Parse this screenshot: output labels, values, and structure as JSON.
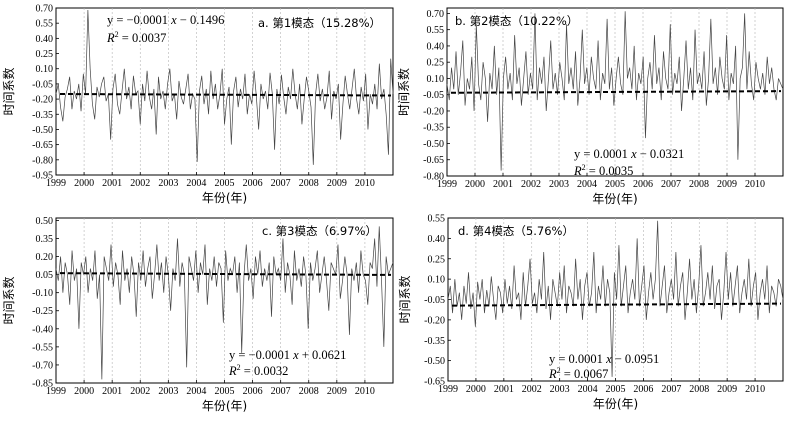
{
  "chart_data": [
    {
      "type": "line",
      "panel": "a",
      "annotation": "a. 第1模态（15.28%）",
      "xlabel": "年份(年)",
      "ylabel": "时间系数",
      "ylim": [
        -0.95,
        0.7
      ],
      "yticks": [
        "0.70",
        "0.55",
        "0.40",
        "0.25",
        "0.10",
        "-0.05",
        "-0.20",
        "-0.35",
        "-0.50",
        "-0.65",
        "-0.80",
        "-0.95"
      ],
      "xticks": [
        "1999",
        "2000",
        "2001",
        "2002",
        "2003",
        "2004",
        "2005",
        "2006",
        "2007",
        "2008",
        "2009",
        "2010"
      ],
      "xlim": [
        1999,
        2011
      ],
      "grid": "vertical dashed",
      "trend": {
        "slope": -0.0001,
        "intercept": -0.1496
      },
      "equation": {
        "prefix": "y = −0.0001 ",
        "var": "x",
        "suffix": " − 0.1496",
        "r2": " = 0.0037"
      },
      "series": [
        {
          "values": [
            -0.15,
            -0.05,
            -0.28,
            -0.42,
            -0.18,
            -0.1,
            0.02,
            -0.3,
            -0.12,
            -0.2,
            -0.05,
            -0.32,
            0.05,
            -0.15,
            0.68,
            0.1,
            -0.25,
            -0.4,
            -0.08,
            -0.18,
            -0.05,
            0.02,
            -0.22,
            -0.15,
            -0.6,
            -0.1,
            0.05,
            -0.25,
            -0.35,
            -0.12,
            0.1,
            -0.2,
            -0.08,
            -0.3,
            0.03,
            -0.15,
            -0.12,
            -0.45,
            -0.05,
            -0.22,
            0.08,
            -0.18,
            -0.3,
            -0.1,
            -0.55,
            0.02,
            -0.2,
            -0.12,
            -0.3,
            -0.05,
            0.1,
            -0.22,
            -0.15,
            -0.4,
            -0.02,
            -0.18,
            -0.25,
            -0.1,
            0.05,
            -0.3,
            -0.15,
            -0.2,
            -0.82,
            -0.12,
            0.03,
            -0.25,
            -0.1,
            -0.35,
            0.08,
            -0.2,
            -0.05,
            -0.3,
            -0.15,
            0.1,
            -0.45,
            -0.2,
            -0.08,
            -0.65,
            -0.12,
            0.02,
            -0.28,
            -0.1,
            -0.2,
            0.05,
            -0.35,
            -0.15,
            -0.25,
            0.08,
            -0.18,
            -0.5,
            -0.05,
            -0.2,
            -0.12,
            -0.3,
            0.06,
            -0.15,
            -0.7,
            -0.1,
            -0.25,
            0.04,
            -0.18,
            -0.35,
            -0.08,
            -0.2,
            0.1,
            -0.15,
            -0.3,
            -0.05,
            -0.45,
            -0.2,
            0.02,
            -0.12,
            -0.28,
            -0.85,
            -0.15,
            0.05,
            -0.22,
            -0.1,
            -0.3,
            -0.18,
            0.08,
            -0.4,
            -0.12,
            -0.2,
            -0.05,
            -0.6,
            -0.25,
            0.03,
            -0.15,
            -0.3,
            -0.1,
            0.1,
            -0.2,
            -0.35,
            -0.08,
            -0.22,
            0.05,
            -0.5,
            -0.15,
            -0.25,
            -0.05,
            -0.3,
            0.15,
            -0.2,
            -0.1,
            -0.35,
            -0.75,
            0.2,
            -0.15
          ]
        }
      ]
    },
    {
      "type": "line",
      "panel": "b",
      "annotation": "b. 第2模态（10.22%）",
      "xlabel": "年份(年)",
      "ylabel": "时间系数",
      "ylim": [
        -0.8,
        0.75
      ],
      "yticks": [
        "0.70",
        "0.55",
        "0.40",
        "0.25",
        "0.10",
        "-0.05",
        "-0.20",
        "-0.35",
        "-0.50",
        "-0.65",
        "-0.80"
      ],
      "xticks": [
        "1999",
        "2000",
        "2001",
        "2002",
        "2003",
        "2004",
        "2005",
        "2006",
        "2007",
        "2008",
        "2009",
        "2010"
      ],
      "xlim": [
        1999,
        2011
      ],
      "grid": "vertical dashed",
      "trend": {
        "slope": 0.0001,
        "intercept": -0.0321
      },
      "equation": {
        "prefix": "y = 0.0001 ",
        "var": "x",
        "suffix": " − 0.0321",
        "r2": " = 0.0035"
      },
      "series": [
        {
          "values": [
            0.05,
            -0.1,
            0.2,
            0.0,
            0.35,
            -0.05,
            0.15,
            0.45,
            -0.15,
            0.1,
            0.0,
            0.3,
            -0.2,
            0.6,
            0.05,
            -0.1,
            0.25,
            0.1,
            -0.3,
            0.15,
            0.0,
            0.4,
            -0.05,
            0.2,
            -0.75,
            0.1,
            0.3,
            0.0,
            0.15,
            -0.1,
            0.5,
            0.05,
            0.2,
            -0.15,
            0.1,
            0.35,
            -0.05,
            0.15,
            0.0,
            0.7,
            -0.1,
            0.2,
            0.05,
            0.3,
            -0.2,
            0.1,
            0.45,
            0.0,
            0.15,
            -0.05,
            0.25,
            0.1,
            -0.1,
            0.6,
            0.05,
            0.2,
            0.0,
            0.35,
            -0.15,
            0.1,
            0.55,
            0.05,
            0.2,
            -0.05,
            0.3,
            0.1,
            0.0,
            0.45,
            -0.1,
            0.15,
            0.05,
            0.65,
            0.0,
            0.2,
            -0.15,
            0.1,
            0.3,
            0.05,
            -0.05,
            0.72,
            0.1,
            0.2,
            0.0,
            0.4,
            -0.1,
            0.15,
            0.05,
            0.3,
            -0.45,
            0.1,
            0.25,
            0.0,
            0.5,
            0.05,
            0.2,
            -0.1,
            0.35,
            0.1,
            0.0,
            0.6,
            -0.05,
            0.15,
            0.05,
            0.3,
            -0.2,
            0.1,
            0.45,
            0.0,
            0.2,
            -0.1,
            0.55,
            0.05,
            0.15,
            0.0,
            0.35,
            -0.15,
            0.1,
            0.65,
            0.05,
            0.2,
            -0.05,
            0.3,
            0.1,
            0.0,
            0.5,
            -0.1,
            0.15,
            0.05,
            0.4,
            -0.65,
            0.1,
            0.2,
            0.7,
            0.0,
            0.35,
            0.05,
            -0.1,
            0.25,
            0.1,
            0.0,
            0.15,
            -0.05,
            0.3,
            0.05,
            0.2,
            0.0,
            -0.1,
            0.1,
            0.05,
            0.0
          ]
        }
      ]
    },
    {
      "type": "line",
      "panel": "c",
      "annotation": "c. 第3模态（6.97%）",
      "xlabel": "年份(年)",
      "ylabel": "时间系数",
      "ylim": [
        -0.85,
        0.52
      ],
      "yticks": [
        "0.50",
        "0.35",
        "0.20",
        "0.05",
        "-0.10",
        "-0.25",
        "-0.40",
        "-0.55",
        "-0.70",
        "-0.85"
      ],
      "xticks": [
        "1999",
        "2000",
        "2001",
        "2002",
        "2003",
        "2004",
        "2005",
        "2006",
        "2007",
        "2008",
        "2009",
        "2010"
      ],
      "xlim": [
        1999,
        2011
      ],
      "grid": "vertical dashed",
      "trend": {
        "slope": -0.0001,
        "intercept": 0.0621
      },
      "equation": {
        "prefix": "y = −0.0001 ",
        "var": "x",
        "suffix": " + 0.0621",
        "r2": " = 0.0032"
      },
      "series": [
        {
          "values": [
            0.1,
            0.0,
            0.2,
            -0.1,
            0.15,
            0.05,
            -0.2,
            0.25,
            0.0,
            0.1,
            -0.4,
            0.15,
            0.05,
            0.2,
            -0.1,
            0.1,
            0.0,
            0.25,
            -0.15,
            0.05,
            -0.82,
            0.2,
            0.1,
            0.0,
            0.3,
            -0.05,
            0.15,
            0.05,
            -0.2,
            0.25,
            0.0,
            0.1,
            -0.1,
            0.2,
            0.05,
            -0.3,
            0.15,
            0.0,
            0.25,
            -0.05,
            0.1,
            0.2,
            -0.15,
            0.05,
            0.3,
            0.0,
            0.15,
            -0.1,
            0.2,
            0.05,
            -0.25,
            0.1,
            0.0,
            0.35,
            -0.05,
            0.15,
            0.05,
            -0.72,
            0.2,
            0.1,
            0.0,
            0.25,
            -0.1,
            0.15,
            0.05,
            0.3,
            -0.2,
            0.1,
            0.0,
            0.2,
            -0.05,
            0.15,
            0.1,
            -0.35,
            0.25,
            0.0,
            0.1,
            0.05,
            0.2,
            -0.1,
            0.15,
            -0.6,
            0.05,
            0.3,
            0.0,
            0.1,
            -0.15,
            0.2,
            0.05,
            0.25,
            -0.05,
            0.1,
            0.0,
            0.15,
            -0.3,
            0.2,
            0.05,
            0.1,
            0.0,
            0.35,
            -0.1,
            0.15,
            0.05,
            -0.2,
            0.25,
            0.0,
            0.1,
            -0.05,
            0.2,
            0.05,
            -0.4,
            0.15,
            0.0,
            0.1,
            0.25,
            -0.1,
            0.05,
            0.2,
            0.0,
            -0.25,
            0.15,
            0.1,
            0.05,
            0.3,
            -0.15,
            0.0,
            0.2,
            0.05,
            -0.45,
            0.1,
            0.0,
            0.15,
            -0.1,
            0.25,
            0.05,
            0.0,
            -0.2,
            0.15,
            0.1,
            0.35,
            -0.05,
            0.45,
            0.0,
            -0.55,
            0.2,
            0.05,
            0.1,
            0.15
          ]
        }
      ]
    },
    {
      "type": "line",
      "panel": "d",
      "annotation": "d. 第4模态（5.76%）",
      "xlabel": "年份(年)",
      "ylabel": "时间系数",
      "ylim": [
        -0.65,
        0.55
      ],
      "yticks": [
        "0.55",
        "0.40",
        "0.25",
        "0.10",
        "-0.05",
        "-0.20",
        "-0.35",
        "-0.50",
        "-0.65"
      ],
      "xticks": [
        "1999",
        "2000",
        "2001",
        "2002",
        "2003",
        "2004",
        "2005",
        "2006",
        "2007",
        "2008",
        "2009",
        "2010"
      ],
      "xlim": [
        1999,
        2011
      ],
      "grid": "vertical dashed",
      "trend": {
        "slope": 0.0001,
        "intercept": -0.0951
      },
      "equation": {
        "prefix": "y = 0.0001 ",
        "var": "x",
        "suffix": " − 0.0951",
        "r2": " = 0.0067"
      },
      "series": [
        {
          "values": [
            -0.05,
            0.05,
            -0.15,
            0.1,
            -0.1,
            0.0,
            -0.2,
            0.05,
            -0.08,
            0.15,
            -0.12,
            0.0,
            -0.25,
            0.08,
            -0.05,
            0.1,
            -0.15,
            0.02,
            -0.1,
            0.12,
            -0.05,
            -0.2,
            0.05,
            0.0,
            -0.15,
            0.1,
            -0.08,
            0.05,
            -0.12,
            0.2,
            -0.05,
            0.0,
            -0.2,
            0.15,
            -0.1,
            0.05,
            0.25,
            -0.08,
            0.0,
            -0.15,
            0.1,
            -0.05,
            0.3,
            -0.12,
            0.05,
            -0.2,
            0.1,
            0.0,
            -0.1,
            0.15,
            -0.05,
            0.2,
            -0.15,
            0.05,
            0.0,
            -0.1,
            0.25,
            -0.05,
            0.1,
            -0.2,
            0.05,
            0.15,
            -0.1,
            0.0,
            0.3,
            -0.15,
            0.05,
            -0.05,
            0.2,
            -0.1,
            0.1,
            0.0,
            -0.62,
            0.15,
            -0.05,
            0.35,
            -0.1,
            0.05,
            0.2,
            -0.15,
            0.0,
            0.1,
            -0.05,
            0.4,
            -0.1,
            0.05,
            0.2,
            -0.2,
            0.0,
            0.15,
            -0.05,
            0.1,
            0.53,
            -0.1,
            0.05,
            0.2,
            -0.15,
            0.0,
            0.1,
            -0.05,
            0.3,
            -0.1,
            0.05,
            0.15,
            -0.2,
            0.0,
            0.25,
            -0.05,
            0.1,
            -0.15,
            0.05,
            0.35,
            -0.1,
            0.0,
            0.15,
            -0.05,
            0.2,
            -0.12,
            0.05,
            0.1,
            -0.2,
            0.0,
            0.3,
            -0.05,
            0.15,
            -0.1,
            0.05,
            0.2,
            -0.15,
            0.0,
            0.1,
            -0.05,
            0.25,
            -0.1,
            0.05,
            0.15,
            -0.2,
            0.0,
            0.1,
            -0.05,
            0.2,
            -0.15,
            0.05,
            0.0,
            -0.1,
            0.1,
            0.05,
            -0.05
          ]
        }
      ]
    }
  ]
}
